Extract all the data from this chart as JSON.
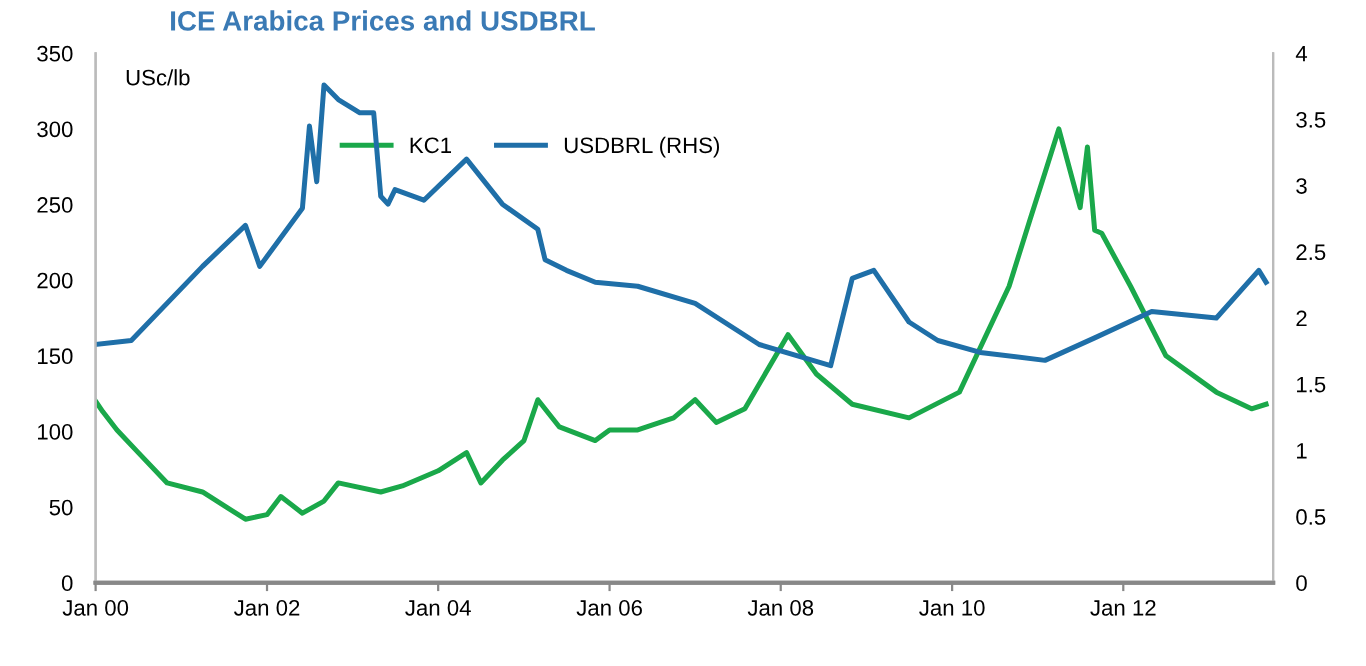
{
  "chart_data": {
    "type": "line",
    "title": "ICE Arabica Prices and USDBRL",
    "ylabel": "USc/lb",
    "legend": "top",
    "grid": false,
    "series": [
      {
        "name": "KC1",
        "color": "#1aa84a",
        "x": [
          "2000-01",
          "2000-02",
          "2000-04",
          "2000-07",
          "2000-11",
          "2001-04",
          "2001-10",
          "2002-01",
          "2002-03",
          "2002-06",
          "2002-09",
          "2002-11",
          "2003-05",
          "2003-08",
          "2004-01",
          "2004-05",
          "2004-07",
          "2004-10",
          "2005-01",
          "2005-03",
          "2005-06",
          "2005-11",
          "2006-01",
          "2006-05",
          "2006-10",
          "2007-01",
          "2007-04",
          "2007-08",
          "2008-02",
          "2008-06",
          "2008-11",
          "2009-07",
          "2010-02",
          "2010-09",
          "2010-12",
          "2011-02",
          "2011-04",
          "2011-06",
          "2011-07",
          "2011-08",
          "2011-09",
          "2011-10",
          "2012-02",
          "2012-07",
          "2013-02",
          "2013-07",
          "2013-09"
        ],
        "values": [
          120,
          113,
          101,
          86,
          66,
          60,
          42,
          45,
          57,
          46,
          54,
          66,
          60,
          64,
          74,
          86,
          66,
          81,
          94,
          121,
          103,
          94,
          101,
          101,
          109,
          121,
          106,
          115,
          164,
          138,
          118,
          109,
          126,
          196,
          241,
          271,
          300,
          265,
          248,
          288,
          233,
          231,
          196,
          150,
          126,
          115,
          118
        ]
      },
      {
        "name": "USDBRL (RHS)",
        "color": "#1f6fa8",
        "axis": "y2",
        "x": [
          "2000-01",
          "2000-06",
          "2001-04",
          "2001-10",
          "2001-12",
          "2002-06",
          "2002-07",
          "2002-08",
          "2002-09",
          "2002-11",
          "2003-02",
          "2003-04",
          "2003-05",
          "2003-06",
          "2003-07",
          "2003-11",
          "2004-05",
          "2004-10",
          "2005-03",
          "2005-04",
          "2005-07",
          "2005-11",
          "2006-05",
          "2007-01",
          "2007-10",
          "2008-08",
          "2008-11",
          "2009-02",
          "2009-07",
          "2009-11",
          "2010-05",
          "2011-02",
          "2011-09",
          "2012-05",
          "2013-02",
          "2013-08",
          "2013-09"
        ],
        "values": [
          1.8,
          1.83,
          2.39,
          2.7,
          2.39,
          2.83,
          3.45,
          3.03,
          3.76,
          3.65,
          3.55,
          3.55,
          2.92,
          2.86,
          2.97,
          2.89,
          3.2,
          2.86,
          2.67,
          2.44,
          2.36,
          2.27,
          2.24,
          2.11,
          1.8,
          1.64,
          2.3,
          2.36,
          1.97,
          1.83,
          1.74,
          1.68,
          1.85,
          2.05,
          2.0,
          2.36,
          2.27
        ]
      }
    ],
    "xlim": [
      "2000-01",
      "2013-10"
    ],
    "xticks": [
      {
        "value": "2000-01",
        "label": "Jan 00"
      },
      {
        "value": "2002-01",
        "label": "Jan 02"
      },
      {
        "value": "2004-01",
        "label": "Jan 04"
      },
      {
        "value": "2006-01",
        "label": "Jan 06"
      },
      {
        "value": "2008-01",
        "label": "Jan 08"
      },
      {
        "value": "2010-01",
        "label": "Jan 10"
      },
      {
        "value": "2012-01",
        "label": "Jan 12"
      }
    ],
    "ylim": [
      0,
      350
    ],
    "yticks": [
      0,
      50,
      100,
      150,
      200,
      250,
      300,
      350
    ],
    "y2lim": [
      0,
      4
    ],
    "y2ticks": [
      0,
      0.5,
      1,
      1.5,
      2,
      2.5,
      3,
      3.5,
      4
    ]
  }
}
